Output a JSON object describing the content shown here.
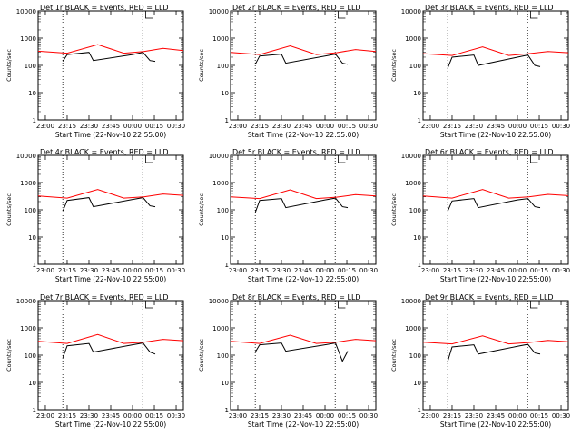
{
  "chart_data": [
    {
      "type": "line",
      "title": "Det 1r BLACK = Events, RED = LLD",
      "xlabel": "Start Time (22-Nov-10 22:55:00)",
      "ylabel": "Counts/sec",
      "yscale": "log",
      "ylim": [
        1,
        10000
      ],
      "x_ticks": [
        "23:00",
        "23:15",
        "23:30",
        "23:45",
        "00:00",
        "00:15",
        "00:30"
      ],
      "y_ticks": [
        "1",
        "10",
        "100",
        "1000",
        "10000"
      ],
      "vertical_lines_dotted": [
        "23:12",
        "00:07"
      ],
      "vertical_line_solid": "00:09",
      "series": [
        {
          "color": "#000000",
          "values": [
            [
              23.2,
              140
            ],
            [
              23.25,
              250
            ],
            [
              23.5,
              300
            ],
            [
              23.55,
              150
            ],
            [
              24.0,
              250
            ],
            [
              24.12,
              300
            ],
            [
              24.2,
              150
            ],
            [
              24.26,
              140
            ]
          ]
        },
        {
          "color": "#ff0000",
          "values": [
            [
              22.917,
              330
            ],
            [
              23.25,
              280
            ],
            [
              23.6,
              580
            ],
            [
              23.9,
              280
            ],
            [
              24.13,
              320
            ],
            [
              24.35,
              420
            ],
            [
              24.583,
              350
            ]
          ]
        }
      ]
    },
    {
      "type": "line",
      "title": "Det 2r BLACK = Events, RED = LLD",
      "xlabel": "Start Time (22-Nov-10 22:55:00)",
      "ylabel": "Counts/sec",
      "yscale": "log",
      "ylim": [
        1,
        10000
      ],
      "x_ticks": [
        "23:00",
        "23:15",
        "23:30",
        "23:45",
        "00:00",
        "00:15",
        "00:30"
      ],
      "y_ticks": [
        "1",
        "10",
        "100",
        "1000",
        "10000"
      ],
      "vertical_lines_dotted": [
        "23:12",
        "00:07"
      ],
      "vertical_line_solid": "00:09",
      "series": [
        {
          "color": "#000000",
          "values": [
            [
              23.2,
              110
            ],
            [
              23.25,
              220
            ],
            [
              23.5,
              260
            ],
            [
              23.55,
              120
            ],
            [
              24.0,
              220
            ],
            [
              24.12,
              260
            ],
            [
              24.2,
              120
            ],
            [
              24.26,
              110
            ]
          ]
        },
        {
          "color": "#ff0000",
          "values": [
            [
              22.917,
              300
            ],
            [
              23.25,
              250
            ],
            [
              23.6,
              520
            ],
            [
              23.9,
              250
            ],
            [
              24.13,
              290
            ],
            [
              24.35,
              380
            ],
            [
              24.583,
              320
            ]
          ]
        }
      ]
    },
    {
      "type": "line",
      "title": "Det 3r BLACK = Events, RED = LLD",
      "xlabel": "Start Time (22-Nov-10 22:55:00)",
      "ylabel": "Counts/sec",
      "yscale": "log",
      "ylim": [
        1,
        10000
      ],
      "x_ticks": [
        "23:00",
        "23:15",
        "23:30",
        "23:45",
        "00:00",
        "00:15",
        "00:30"
      ],
      "y_ticks": [
        "1",
        "10",
        "100",
        "1000",
        "10000"
      ],
      "vertical_lines_dotted": [
        "23:12",
        "00:07"
      ],
      "vertical_line_solid": "00:09",
      "series": [
        {
          "color": "#000000",
          "values": [
            [
              23.2,
              80
            ],
            [
              23.25,
              200
            ],
            [
              23.5,
              240
            ],
            [
              23.55,
              100
            ],
            [
              24.0,
              200
            ],
            [
              24.12,
              240
            ],
            [
              24.2,
              100
            ],
            [
              24.26,
              90
            ]
          ]
        },
        {
          "color": "#ff0000",
          "values": [
            [
              22.917,
              270
            ],
            [
              23.25,
              230
            ],
            [
              23.6,
              480
            ],
            [
              23.9,
              230
            ],
            [
              24.13,
              270
            ],
            [
              24.35,
              320
            ],
            [
              24.583,
              290
            ]
          ]
        }
      ]
    },
    {
      "type": "line",
      "title": "Det 4r BLACK = Events, RED = LLD",
      "xlabel": "Start Time (22-Nov-10 22:55:00)",
      "ylabel": "Counts/sec",
      "yscale": "log",
      "ylim": [
        1,
        10000
      ],
      "x_ticks": [
        "23:00",
        "23:15",
        "23:30",
        "23:45",
        "00:00",
        "00:15",
        "00:30"
      ],
      "y_ticks": [
        "1",
        "10",
        "100",
        "1000",
        "10000"
      ],
      "vertical_lines_dotted": [
        "23:12",
        "00:07"
      ],
      "vertical_line_solid": "00:09",
      "series": [
        {
          "color": "#000000",
          "values": [
            [
              23.2,
              90
            ],
            [
              23.25,
              220
            ],
            [
              23.5,
              280
            ],
            [
              23.55,
              130
            ],
            [
              24.0,
              240
            ],
            [
              24.12,
              280
            ],
            [
              24.2,
              140
            ],
            [
              24.26,
              130
            ]
          ]
        },
        {
          "color": "#ff0000",
          "values": [
            [
              22.917,
              320
            ],
            [
              23.25,
              270
            ],
            [
              23.6,
              560
            ],
            [
              23.9,
              270
            ],
            [
              24.13,
              300
            ],
            [
              24.35,
              380
            ],
            [
              24.583,
              340
            ]
          ]
        }
      ]
    },
    {
      "type": "line",
      "title": "Det 5r BLACK = Events, RED = LLD",
      "xlabel": "Start Time (22-Nov-10 22:55:00)",
      "ylabel": "Counts/sec",
      "yscale": "log",
      "ylim": [
        1,
        10000
      ],
      "x_ticks": [
        "23:00",
        "23:15",
        "23:30",
        "23:45",
        "00:00",
        "00:15",
        "00:30"
      ],
      "y_ticks": [
        "1",
        "10",
        "100",
        "1000",
        "10000"
      ],
      "vertical_lines_dotted": [
        "23:12",
        "00:07"
      ],
      "vertical_line_solid": "00:09",
      "series": [
        {
          "color": "#000000",
          "values": [
            [
              23.2,
              80
            ],
            [
              23.25,
              220
            ],
            [
              23.5,
              260
            ],
            [
              23.55,
              120
            ],
            [
              24.0,
              230
            ],
            [
              24.12,
              270
            ],
            [
              24.2,
              130
            ],
            [
              24.26,
              120
            ]
          ]
        },
        {
          "color": "#ff0000",
          "values": [
            [
              22.917,
              300
            ],
            [
              23.25,
              260
            ],
            [
              23.6,
              540
            ],
            [
              23.9,
              260
            ],
            [
              24.13,
              290
            ],
            [
              24.35,
              360
            ],
            [
              24.583,
              320
            ]
          ]
        }
      ]
    },
    {
      "type": "line",
      "title": "Det 6r BLACK = Events, RED = LLD",
      "xlabel": "Start Time (22-Nov-10 22:55:00)",
      "ylabel": "Counts/sec",
      "yscale": "log",
      "ylim": [
        1,
        10000
      ],
      "x_ticks": [
        "23:00",
        "23:15",
        "23:30",
        "23:45",
        "00:00",
        "00:15",
        "00:30"
      ],
      "y_ticks": [
        "1",
        "10",
        "100",
        "1000",
        "10000"
      ],
      "vertical_lines_dotted": [
        "23:12",
        "00:07"
      ],
      "vertical_line_solid": "00:09",
      "series": [
        {
          "color": "#000000",
          "values": [
            [
              23.2,
              90
            ],
            [
              23.25,
              210
            ],
            [
              23.5,
              260
            ],
            [
              23.55,
              120
            ],
            [
              24.0,
              230
            ],
            [
              24.12,
              260
            ],
            [
              24.2,
              130
            ],
            [
              24.26,
              120
            ]
          ]
        },
        {
          "color": "#ff0000",
          "values": [
            [
              22.917,
              320
            ],
            [
              23.25,
              270
            ],
            [
              23.6,
              560
            ],
            [
              23.9,
              270
            ],
            [
              24.13,
              300
            ],
            [
              24.35,
              370
            ],
            [
              24.583,
              330
            ]
          ]
        }
      ]
    },
    {
      "type": "line",
      "title": "Det 7r BLACK = Events, RED = LLD",
      "xlabel": "Start Time (22-Nov-10 22:55:00)",
      "ylabel": "Counts/sec",
      "yscale": "log",
      "ylim": [
        1,
        10000
      ],
      "x_ticks": [
        "23:00",
        "23:15",
        "23:30",
        "23:45",
        "00:00",
        "00:15",
        "00:30"
      ],
      "y_ticks": [
        "1",
        "10",
        "100",
        "1000",
        "10000"
      ],
      "vertical_lines_dotted": [
        "23:12",
        "00:07"
      ],
      "vertical_line_solid": "00:09",
      "series": [
        {
          "color": "#000000",
          "values": [
            [
              23.2,
              80
            ],
            [
              23.25,
              220
            ],
            [
              23.5,
              270
            ],
            [
              23.55,
              130
            ],
            [
              24.0,
              240
            ],
            [
              24.12,
              280
            ],
            [
              24.2,
              130
            ],
            [
              24.26,
              110
            ]
          ]
        },
        {
          "color": "#ff0000",
          "values": [
            [
              22.917,
              320
            ],
            [
              23.25,
              270
            ],
            [
              23.6,
              570
            ],
            [
              23.9,
              270
            ],
            [
              24.13,
              300
            ],
            [
              24.35,
              380
            ],
            [
              24.583,
              340
            ]
          ]
        }
      ]
    },
    {
      "type": "line",
      "title": "Det 8r BLACK = Events, RED = LLD",
      "xlabel": "Start Time (22-Nov-10 22:55:00)",
      "ylabel": "Counts/sec",
      "yscale": "log",
      "ylim": [
        1,
        10000
      ],
      "x_ticks": [
        "23:00",
        "23:15",
        "23:30",
        "23:45",
        "00:00",
        "00:15",
        "00:30"
      ],
      "y_ticks": [
        "1",
        "10",
        "100",
        "1000",
        "10000"
      ],
      "vertical_lines_dotted": [
        "23:12",
        "00:07"
      ],
      "vertical_line_solid": "00:09",
      "series": [
        {
          "color": "#000000",
          "values": [
            [
              23.2,
              130
            ],
            [
              23.25,
              240
            ],
            [
              23.5,
              280
            ],
            [
              23.55,
              140
            ],
            [
              24.0,
              240
            ],
            [
              24.12,
              280
            ],
            [
              24.2,
              60
            ],
            [
              24.26,
              140
            ]
          ]
        },
        {
          "color": "#ff0000",
          "values": [
            [
              22.917,
              320
            ],
            [
              23.25,
              270
            ],
            [
              23.6,
              540
            ],
            [
              23.9,
              270
            ],
            [
              24.13,
              300
            ],
            [
              24.35,
              380
            ],
            [
              24.583,
              340
            ]
          ]
        }
      ]
    },
    {
      "type": "line",
      "title": "Det 9r BLACK = Events, RED = LLD",
      "xlabel": "Start Time (22-Nov-10 22:55:00)",
      "ylabel": "Counts/sec",
      "yscale": "log",
      "ylim": [
        1,
        10000
      ],
      "x_ticks": [
        "23:00",
        "23:15",
        "23:30",
        "23:45",
        "00:00",
        "00:15",
        "00:30"
      ],
      "y_ticks": [
        "1",
        "10",
        "100",
        "1000",
        "10000"
      ],
      "vertical_lines_dotted": [
        "23:12",
        "00:07"
      ],
      "vertical_line_solid": "00:09",
      "series": [
        {
          "color": "#000000",
          "values": [
            [
              23.2,
              60
            ],
            [
              23.25,
              200
            ],
            [
              23.5,
              240
            ],
            [
              23.55,
              110
            ],
            [
              24.0,
              210
            ],
            [
              24.12,
              250
            ],
            [
              24.2,
              120
            ],
            [
              24.26,
              110
            ]
          ]
        },
        {
          "color": "#ff0000",
          "values": [
            [
              22.917,
              300
            ],
            [
              23.25,
              260
            ],
            [
              23.6,
              510
            ],
            [
              23.9,
              260
            ],
            [
              24.13,
              290
            ],
            [
              24.35,
              350
            ],
            [
              24.583,
              310
            ]
          ]
        }
      ]
    }
  ]
}
